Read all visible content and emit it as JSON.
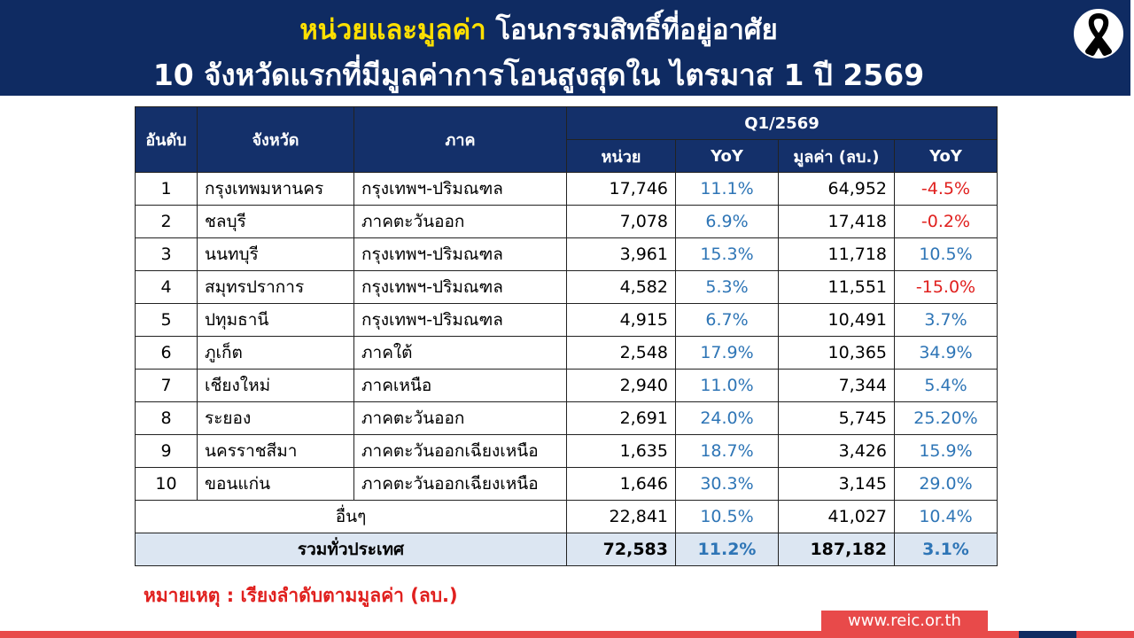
{
  "header": {
    "title_highlight": "หน่วยและมูลค่า",
    "title_rest": "โอนกรรมสิทธิ์ที่อยู่อาศัย",
    "subtitle": "10 จังหวัดแรกที่มีมูลค่าการโอนสูงสุดใน ไตรมาส 1 ปี 2569"
  },
  "table": {
    "headers": {
      "rank": "อันดับ",
      "province": "จังหวัด",
      "region": "ภาค",
      "period": "Q1/2569",
      "units": "หน่วย",
      "units_yoy": "YoY",
      "value": "มูลค่า (ลบ.)",
      "value_yoy": "YoY"
    },
    "rows": [
      [
        "1",
        "กรุงเทพมหานคร",
        "กรุงเทพฯ-ปริมณฑล",
        "17,746",
        "11.1%",
        "64,952",
        "-4.5%"
      ],
      [
        "2",
        "ชลบุรี",
        "ภาคตะวันออก",
        "7,078",
        "6.9%",
        "17,418",
        "-0.2%"
      ],
      [
        "3",
        "นนทบุรี",
        "กรุงเทพฯ-ปริมณฑล",
        "3,961",
        "15.3%",
        "11,718",
        "10.5%"
      ],
      [
        "4",
        "สมุทรปราการ",
        "กรุงเทพฯ-ปริมณฑล",
        "4,582",
        "5.3%",
        "11,551",
        "-15.0%"
      ],
      [
        "5",
        "ปทุมธานี",
        "กรุงเทพฯ-ปริมณฑล",
        "4,915",
        "6.7%",
        "10,491",
        "3.7%"
      ],
      [
        "6",
        "ภูเก็ต",
        "ภาคใต้",
        "2,548",
        "17.9%",
        "10,365",
        "34.9%"
      ],
      [
        "7",
        "เชียงใหม่",
        "ภาคเหนือ",
        "2,940",
        "11.0%",
        "7,344",
        "5.4%"
      ],
      [
        "8",
        "ระยอง",
        "ภาคตะวันออก",
        "2,691",
        "24.0%",
        "5,745",
        "25.20%"
      ],
      [
        "9",
        "นครราชสีมา",
        "ภาคตะวันออกเฉียงเหนือ",
        "1,635",
        "18.7%",
        "3,426",
        "15.9%"
      ],
      [
        "10",
        "ขอนแก่น",
        "ภาคตะวันออกเฉียงเหนือ",
        "1,646",
        "30.3%",
        "3,145",
        "29.0%"
      ]
    ],
    "others": [
      "อื่นๆ",
      "22,841",
      "10.5%",
      "41,027",
      "10.4%"
    ],
    "total": [
      "รวมทั่วประเทศ",
      "72,583",
      "11.2%",
      "187,182",
      "3.1%"
    ]
  },
  "note": "หมายเหตุ : เรียงลำดับตามมูลค่า (ลบ.)",
  "footer": {
    "url": "www.reic.or.th"
  }
}
